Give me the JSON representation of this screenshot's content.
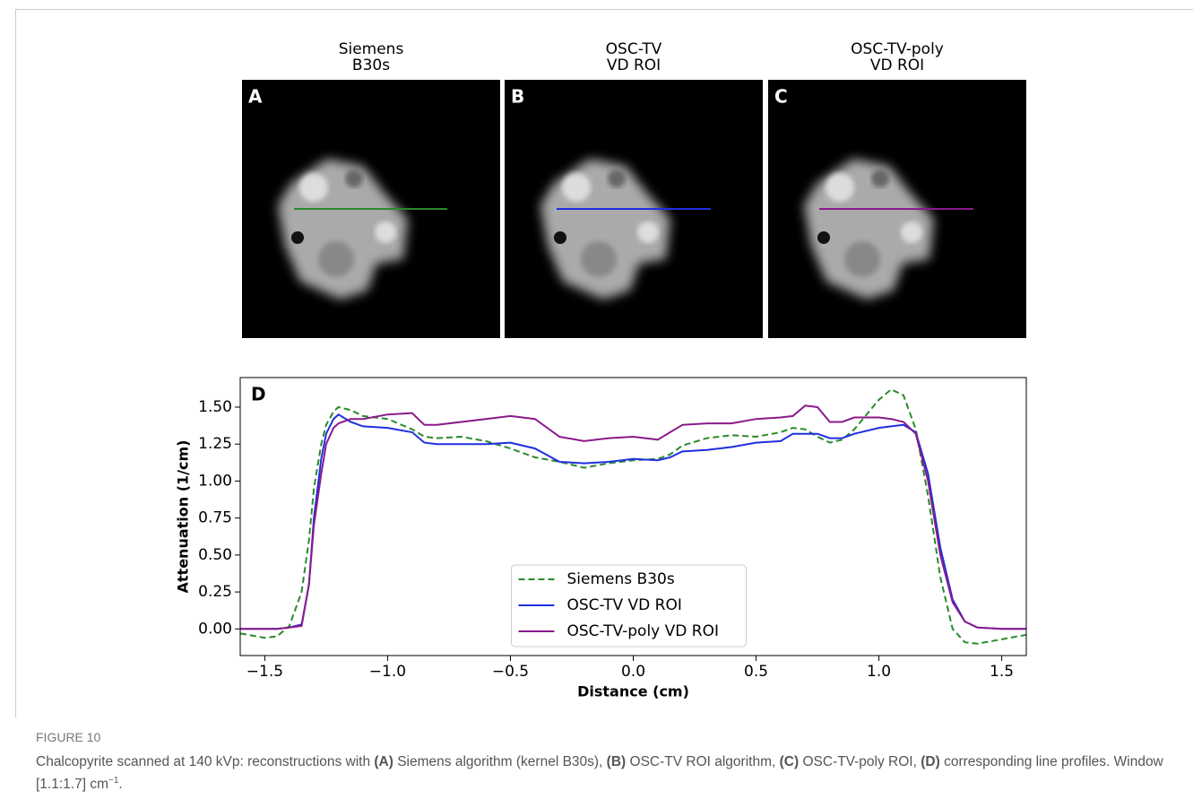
{
  "panels": [
    {
      "title": [
        "Siemens",
        "B30s"
      ],
      "label": "A"
    },
    {
      "title": [
        "OSC-TV",
        "VD ROI"
      ],
      "label": "B"
    },
    {
      "title": [
        "OSC-TV-poly",
        "VD ROI"
      ],
      "label": "C"
    }
  ],
  "chart_data": {
    "type": "line",
    "panel_label": "D",
    "xlabel": "Distance (cm)",
    "ylabel": "Attenuation (1/cm)",
    "xlim": [
      -1.6,
      1.6
    ],
    "ylim": [
      -0.18,
      1.7
    ],
    "xticks": [
      {
        "value": -1.5,
        "label": "−1.5"
      },
      {
        "value": -1,
        "label": "−1.0"
      },
      {
        "value": -0.5,
        "label": "−0.5"
      },
      {
        "value": 0,
        "label": "0.0"
      },
      0.5,
      {
        "value": 1,
        "label": "1.0"
      },
      1.5
    ],
    "yticks": [
      {
        "value": 0,
        "label": "0.00"
      },
      {
        "value": 0.25,
        "label": "0.25"
      },
      {
        "value": 0.5,
        "label": "0.50"
      },
      {
        "value": 0.75,
        "label": "0.75"
      },
      {
        "value": 1,
        "label": "1.00"
      },
      {
        "value": 1.25,
        "label": "1.25"
      },
      {
        "value": 1.5,
        "label": "1.50"
      }
    ],
    "grid": false,
    "legend": "lower center",
    "x": [
      -1.6,
      -1.5,
      -1.45,
      -1.4,
      -1.35,
      -1.32,
      -1.3,
      -1.27,
      -1.25,
      -1.22,
      -1.2,
      -1.15,
      -1.1,
      -1.0,
      -0.9,
      -0.85,
      -0.8,
      -0.7,
      -0.6,
      -0.5,
      -0.4,
      -0.3,
      -0.2,
      -0.1,
      0.0,
      0.1,
      0.15,
      0.2,
      0.3,
      0.4,
      0.5,
      0.6,
      0.65,
      0.7,
      0.75,
      0.8,
      0.85,
      0.9,
      1.0,
      1.05,
      1.1,
      1.15,
      1.2,
      1.25,
      1.3,
      1.35,
      1.4,
      1.5,
      1.6
    ],
    "series": [
      {
        "name": "Siemens B30s",
        "color": "#2a8a2a",
        "linestyle": "dashed",
        "values": [
          -0.03,
          -0.06,
          -0.05,
          0.02,
          0.25,
          0.6,
          0.95,
          1.25,
          1.38,
          1.47,
          1.5,
          1.48,
          1.44,
          1.42,
          1.35,
          1.3,
          1.29,
          1.3,
          1.27,
          1.22,
          1.16,
          1.13,
          1.09,
          1.12,
          1.14,
          1.15,
          1.18,
          1.24,
          1.29,
          1.31,
          1.3,
          1.33,
          1.36,
          1.35,
          1.3,
          1.26,
          1.28,
          1.35,
          1.55,
          1.62,
          1.58,
          1.35,
          0.9,
          0.35,
          0.0,
          -0.09,
          -0.1,
          -0.07,
          -0.04
        ]
      },
      {
        "name": "OSC-TV VD ROI",
        "color": "#1f2fe0",
        "linestyle": "solid",
        "values": [
          0,
          0,
          0,
          0.01,
          0.03,
          0.3,
          0.75,
          1.15,
          1.32,
          1.42,
          1.45,
          1.4,
          1.37,
          1.36,
          1.33,
          1.26,
          1.25,
          1.25,
          1.25,
          1.26,
          1.22,
          1.13,
          1.12,
          1.13,
          1.15,
          1.14,
          1.16,
          1.2,
          1.21,
          1.23,
          1.26,
          1.27,
          1.32,
          1.32,
          1.32,
          1.29,
          1.29,
          1.32,
          1.36,
          1.37,
          1.38,
          1.33,
          1.05,
          0.55,
          0.2,
          0.05,
          0.01,
          0,
          0
        ]
      },
      {
        "name": "OSC-TV-poly VD ROI",
        "color": "#8b1a8b",
        "linestyle": "solid",
        "values": [
          0,
          0,
          0,
          0.01,
          0.02,
          0.3,
          0.7,
          1.05,
          1.25,
          1.36,
          1.39,
          1.42,
          1.42,
          1.45,
          1.46,
          1.38,
          1.38,
          1.4,
          1.42,
          1.44,
          1.42,
          1.3,
          1.27,
          1.29,
          1.3,
          1.28,
          1.33,
          1.38,
          1.39,
          1.39,
          1.42,
          1.43,
          1.44,
          1.51,
          1.5,
          1.4,
          1.4,
          1.43,
          1.43,
          1.42,
          1.4,
          1.32,
          1.0,
          0.5,
          0.18,
          0.05,
          0.01,
          0,
          0
        ]
      }
    ]
  },
  "caption": {
    "label": "FIGURE 10",
    "text": [
      "Chalcopyrite scanned at 140 kVp: reconstructions with ",
      "(A)",
      " Siemens algorithm (kernel B30s), ",
      "(B)",
      " OSC-TV ROI algorithm, ",
      "(C)",
      " OSC-TV-poly ROI, ",
      "(D)",
      "corresponding line profiles. Window [1.1:1.7] cm",
      "−1",
      "."
    ]
  }
}
